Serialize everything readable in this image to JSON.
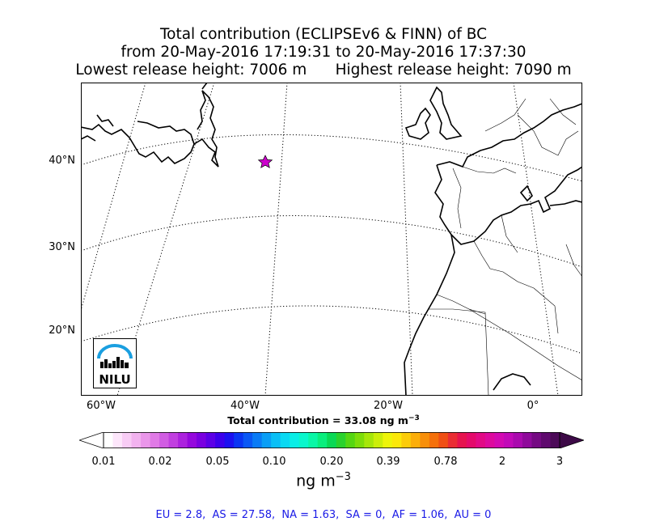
{
  "title": {
    "line1": "Total contribution (ECLIPSEv6 & FINN) of BC",
    "line2": "from 20-May-2016 17:19:31 to 20-May-2016 17:37:30",
    "line3": "Lowest release height: 7006 m      Highest release height: 7090 m"
  },
  "map": {
    "projection": "lambert-conformal",
    "lat_labels": [
      "40°N",
      "30°N",
      "20°N"
    ],
    "lon_labels": [
      "60°W",
      "40°W",
      "20°W",
      "0°"
    ],
    "release_marker": {
      "symbol": "star-icon",
      "color": "#cc00cc"
    },
    "coast_color": "#000000",
    "grid_style": "dotted"
  },
  "total_contribution": "Total contribution = 33.08 ng m",
  "total_contribution_exp": "−3",
  "colorbar": {
    "ticks": [
      "0.01",
      "0.02",
      "0.05",
      "0.10",
      "0.20",
      "0.39",
      "0.78",
      "2",
      "3"
    ],
    "colors": [
      "#ffffff",
      "#fde6fb",
      "#f8ccf5",
      "#f2b2ef",
      "#ea96ea",
      "#e07ae6",
      "#d15de3",
      "#c13fe0",
      "#ac22de",
      "#9508dd",
      "#7a00e0",
      "#5c00e6",
      "#3c00eb",
      "#1c10f0",
      "#0a35f3",
      "#0a58f5",
      "#0a7bf6",
      "#0a9ef6",
      "#0abff6",
      "#0ad9f3",
      "#0aeee6",
      "#0af7cc",
      "#0af7a6",
      "#0aee7d",
      "#0ad955",
      "#2ad22d",
      "#55d612",
      "#7ddd0a",
      "#a6e60a",
      "#ccee0a",
      "#eef50a",
      "#fbe80a",
      "#fbcc0a",
      "#fbae0a",
      "#f88f0a",
      "#f5700a",
      "#f04f14",
      "#ea2d33",
      "#e6134f",
      "#e40a6b",
      "#e20a86",
      "#dd0a9e",
      "#d30ab2",
      "#c20ab8",
      "#aa0aae",
      "#8f0a9b",
      "#750a83",
      "#5f0a6e",
      "#4c0a58"
    ],
    "extend_left_color": "#ffffff",
    "extend_right_color": "#3d0a47"
  },
  "unit_label": "ng m",
  "unit_exp": "−3",
  "regions_text": "EU = 2.8,  AS = 27.58,  NA = 1.63,  SA = 0,  AF = 1.06,  AU = 0",
  "logo_text": "NILU",
  "logo_color": "#1a9fe0"
}
